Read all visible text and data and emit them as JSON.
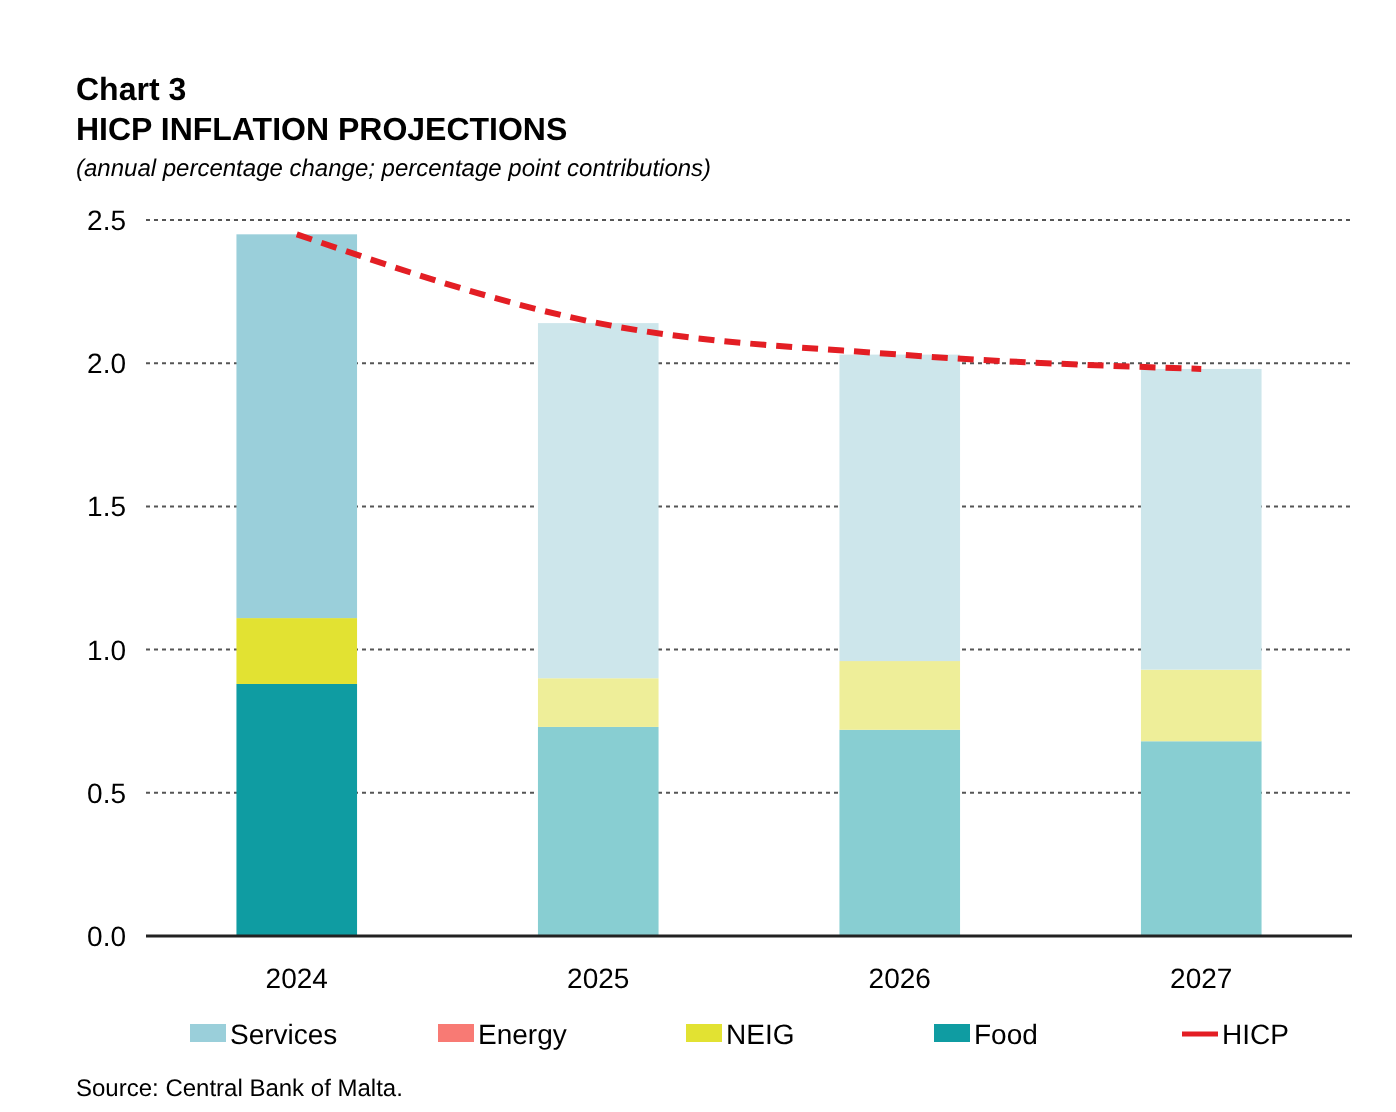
{
  "chart_data": {
    "type": "bar",
    "title": "Chart 3",
    "subtitle": "HICP INFLATION PROJECTIONS",
    "ylabel": "(annual percentage change; percentage point contributions)",
    "categories": [
      "2024",
      "2025",
      "2026",
      "2027"
    ],
    "stacked": true,
    "ylim": [
      0,
      2.5
    ],
    "yticks": [
      {
        "value": 0,
        "label": "0.0"
      },
      0.5,
      {
        "value": 1,
        "label": "1.0"
      },
      1.5,
      {
        "value": 2,
        "label": "2.0"
      },
      2.5
    ],
    "grid": "y",
    "legend": "bottom",
    "annotations": [
      "Source: Central Bank of Malta."
    ],
    "series": [
      {
        "name": "Food",
        "color": "#0f9ca2",
        "colors": [
          "#0f9ca2",
          "#88ced2",
          "#88ced2",
          "#88ced2"
        ],
        "values": [
          0.88,
          0.73,
          0.72,
          0.68
        ]
      },
      {
        "name": "NEIG",
        "color": "#e2e232",
        "colors": [
          "#e2e232",
          "#eeee99",
          "#eeee99",
          "#eeee99"
        ],
        "values": [
          0.23,
          0.17,
          0.24,
          0.25
        ]
      },
      {
        "name": "Energy",
        "color": "#f87a74",
        "values": [
          0,
          0,
          0,
          0
        ]
      },
      {
        "name": "Services",
        "color": "#9acfda",
        "colors": [
          "#9acfda",
          "#cde6eb",
          "#cde6eb",
          "#cde6eb"
        ],
        "values": [
          1.34,
          1.24,
          1.07,
          1.05
        ]
      },
      {
        "name": "HICP",
        "type": "line",
        "color": "#e31e24",
        "line_style": "dashed",
        "values": [
          2.45,
          2.14,
          2.03,
          1.98
        ]
      }
    ]
  }
}
